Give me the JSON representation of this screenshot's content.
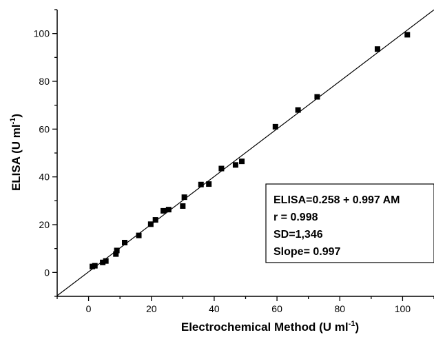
{
  "chart_data": {
    "type": "scatter",
    "xlabel": "Electrochemical Method (U ml",
    "xlabel_sup": "-1",
    "xlabel_end": ")",
    "ylabel": "ELISA (U ml",
    "ylabel_sup": "-1",
    "ylabel_end": ")",
    "xlim": [
      -10,
      110
    ],
    "ylim": [
      -10,
      110
    ],
    "x_ticks": [
      0,
      20,
      40,
      60,
      80,
      100
    ],
    "y_ticks": [
      0,
      20,
      40,
      60,
      80,
      100
    ],
    "x_tick_labels": [
      "0",
      "20",
      "40",
      "60",
      "80",
      "100"
    ],
    "y_tick_labels": [
      "0",
      "20",
      "40",
      "60",
      "80",
      "100"
    ],
    "grid": false,
    "series": [
      {
        "marker": "square",
        "color": "#000000",
        "points": [
          {
            "x": 1.2,
            "y": 2.5
          },
          {
            "x": 2.0,
            "y": 2.8
          },
          {
            "x": 4.5,
            "y": 4.2
          },
          {
            "x": 5.5,
            "y": 4.8
          },
          {
            "x": 8.7,
            "y": 7.7
          },
          {
            "x": 9.0,
            "y": 9.2
          },
          {
            "x": 11.5,
            "y": 12.5
          },
          {
            "x": 16.0,
            "y": 15.5
          },
          {
            "x": 19.8,
            "y": 20.2
          },
          {
            "x": 21.3,
            "y": 22.0
          },
          {
            "x": 23.8,
            "y": 25.8
          },
          {
            "x": 25.5,
            "y": 26.3
          },
          {
            "x": 30.0,
            "y": 27.8
          },
          {
            "x": 30.5,
            "y": 31.5
          },
          {
            "x": 35.8,
            "y": 36.8
          },
          {
            "x": 38.3,
            "y": 37.0
          },
          {
            "x": 42.3,
            "y": 43.5
          },
          {
            "x": 46.8,
            "y": 45.0
          },
          {
            "x": 48.8,
            "y": 46.5
          },
          {
            "x": 59.5,
            "y": 61.0
          },
          {
            "x": 66.7,
            "y": 68.0
          },
          {
            "x": 72.8,
            "y": 73.5
          },
          {
            "x": 92.0,
            "y": 93.5
          },
          {
            "x": 101.5,
            "y": 99.5
          }
        ]
      }
    ],
    "fit_line": {
      "intercept": 0.258,
      "slope": 0.997,
      "x_range": [
        -10,
        110
      ]
    },
    "annotation": {
      "lines": [
        "ELISA=0.258 + 0.997 AM",
        "r = 0.998",
        "SD=1,346",
        "Slope= 0.997"
      ]
    }
  }
}
